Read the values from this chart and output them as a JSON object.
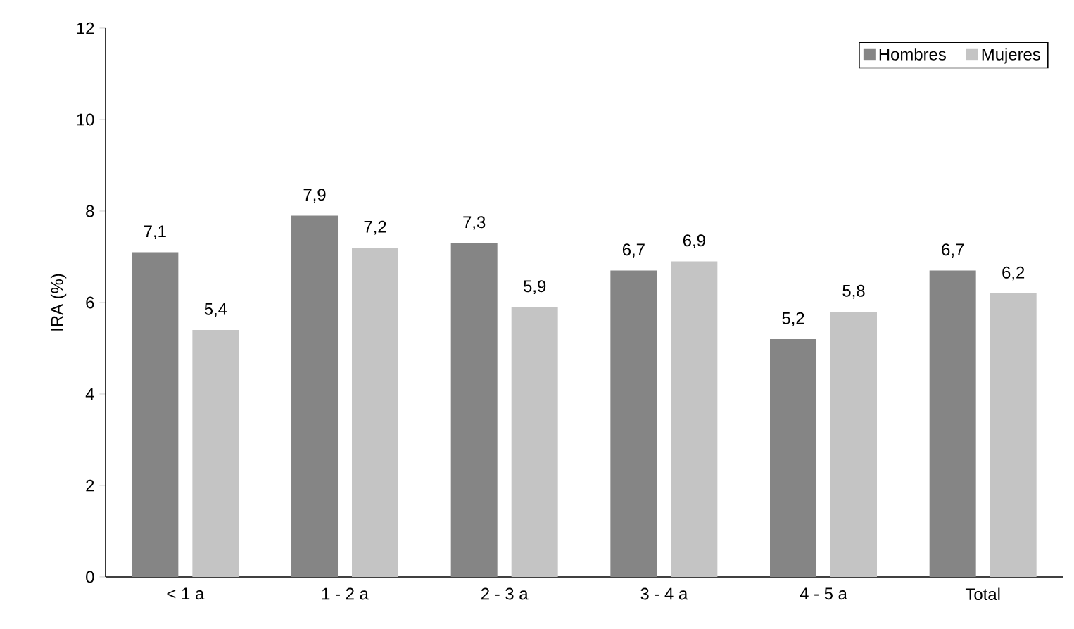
{
  "chart_data": {
    "type": "bar",
    "ylabel": "IRA (%)",
    "categories": [
      "< 1 a",
      "1 - 2 a",
      "2 - 3 a",
      "3 - 4 a",
      "4 - 5 a",
      "Total"
    ],
    "series": [
      {
        "name": "Hombres",
        "color": "#858585",
        "values": [
          7.1,
          7.9,
          7.3,
          6.7,
          5.2,
          6.7
        ],
        "value_labels": [
          "7,1",
          "7,9",
          "7,3",
          "6,7",
          "5,2",
          "6,7"
        ]
      },
      {
        "name": "Mujeres",
        "color": "#c4c4c4",
        "values": [
          5.4,
          7.2,
          5.9,
          6.9,
          5.8,
          6.2
        ],
        "value_labels": [
          "5,4",
          "7,2",
          "5,9",
          "6,9",
          "5,8",
          "6,2"
        ]
      }
    ],
    "ylim": [
      0,
      12
    ],
    "yticks": [
      0,
      2,
      4,
      6,
      8,
      10,
      12
    ],
    "legend": "top right"
  }
}
